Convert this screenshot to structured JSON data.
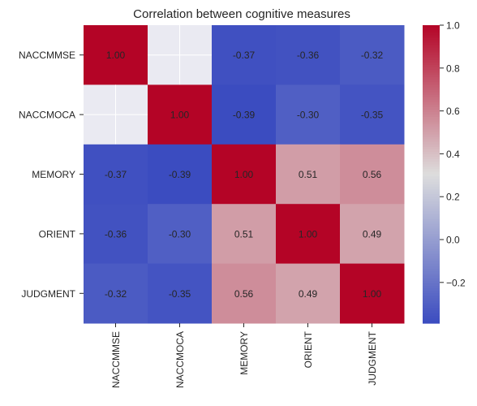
{
  "chart_data": {
    "type": "heatmap",
    "title": "Correlation between cognitive measures",
    "rows": [
      "NACCMMSE",
      "NACCMOCA",
      "MEMORY",
      "ORIENT",
      "JUDGMENT"
    ],
    "columns": [
      "NACCMMSE",
      "NACCMOCA",
      "MEMORY",
      "ORIENT",
      "JUDGMENT"
    ],
    "values": [
      [
        1.0,
        null,
        -0.37,
        -0.36,
        -0.32
      ],
      [
        null,
        1.0,
        -0.39,
        -0.3,
        -0.35
      ],
      [
        -0.37,
        -0.39,
        1.0,
        0.51,
        0.56
      ],
      [
        -0.36,
        -0.3,
        0.51,
        1.0,
        0.49
      ],
      [
        -0.32,
        -0.35,
        0.56,
        0.49,
        1.0
      ]
    ],
    "value_labels": [
      [
        "1.00",
        "",
        "-0.37",
        "-0.36",
        "-0.32"
      ],
      [
        "",
        "1.00",
        "-0.39",
        "-0.30",
        "-0.35"
      ],
      [
        "-0.37",
        "-0.39",
        "1.00",
        "0.51",
        "0.56"
      ],
      [
        "-0.36",
        "-0.30",
        "0.51",
        "1.00",
        "0.49"
      ],
      [
        "-0.32",
        "-0.35",
        "0.56",
        "0.49",
        "1.00"
      ]
    ],
    "color_range": [
      -0.39,
      1.0
    ],
    "colormap": "coolwarm",
    "colormap_colors": [
      "#3b4cc0",
      "#dddddd",
      "#b40426"
    ],
    "missing_color": "#eaeaf2",
    "colorbar_ticks": [
      -0.2,
      0.0,
      0.2,
      0.4,
      0.6,
      0.8,
      1.0
    ],
    "colorbar_tick_labels": [
      "−0.2",
      "0.0",
      "0.2",
      "0.4",
      "0.6",
      "0.8",
      "1.0"
    ],
    "legend": "colorbar-right",
    "grid": false
  }
}
